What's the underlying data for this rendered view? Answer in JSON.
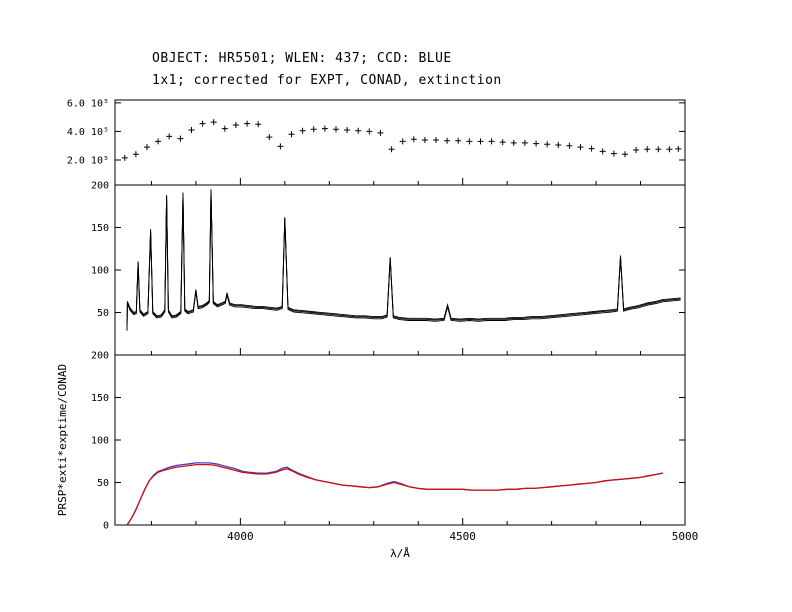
{
  "title": {
    "line1": "OBJECT: HR5501; WLEN: 437; CCD: BLUE",
    "line2": "1x1; corrected for EXPT, CONAD, extinction"
  },
  "axes": {
    "xlabel": "λ/Å",
    "ylabel": "PRSP*exti*exptime/CONAD",
    "xlim": [
      3718,
      5000
    ],
    "xticks": [
      {
        "value": 4000,
        "label": "4000"
      },
      {
        "value": 4500,
        "label": "4500"
      },
      {
        "value": 5000,
        "label": "5000"
      }
    ],
    "xtick_minor_step": 100
  },
  "chart_data": [
    {
      "type": "scatter",
      "name": "flux-calibration-points",
      "marker": "+",
      "color": "#000000",
      "ylim": [
        25000,
        620000
      ],
      "yticks": [
        {
          "value": 200000,
          "label": "2.0 10⁵"
        },
        {
          "value": 400000,
          "label": "4.0 10⁵"
        },
        {
          "value": 600000,
          "label": "6.0 10⁵"
        }
      ],
      "x": [
        3740,
        3765,
        3790,
        3815,
        3840,
        3865,
        3890,
        3915,
        3940,
        3965,
        3990,
        4015,
        4040,
        4065,
        4090,
        4115,
        4140,
        4165,
        4190,
        4215,
        4240,
        4265,
        4290,
        4315,
        4340,
        4365,
        4390,
        4415,
        4440,
        4465,
        4490,
        4515,
        4540,
        4565,
        4590,
        4615,
        4640,
        4665,
        4690,
        4715,
        4740,
        4765,
        4790,
        4815,
        4840,
        4865,
        4890,
        4915,
        4940,
        4965,
        4985
      ],
      "y": [
        215000,
        240000,
        290000,
        330000,
        365000,
        350000,
        410000,
        455000,
        465000,
        420000,
        445000,
        455000,
        450000,
        360000,
        295000,
        380000,
        405000,
        415000,
        420000,
        415000,
        410000,
        405000,
        400000,
        390000,
        275000,
        330000,
        345000,
        340000,
        340000,
        335000,
        335000,
        330000,
        330000,
        330000,
        325000,
        320000,
        320000,
        315000,
        310000,
        305000,
        300000,
        290000,
        280000,
        260000,
        245000,
        240000,
        270000,
        275000,
        275000,
        275000,
        278000
      ]
    },
    {
      "type": "line",
      "name": "raw-spectra-overlay",
      "color": "#000000",
      "overlay_traces": 3,
      "ylim": [
        0,
        200
      ],
      "yticks": [
        {
          "value": 50,
          "label": "50"
        },
        {
          "value": 100,
          "label": "100"
        },
        {
          "value": 150,
          "label": "150"
        },
        {
          "value": 200,
          "label": "200"
        }
      ],
      "x": [
        3745,
        3746,
        3752,
        3760,
        3766,
        3770,
        3774,
        3782,
        3792,
        3798,
        3803,
        3812,
        3822,
        3830,
        3834,
        3838,
        3846,
        3856,
        3866,
        3871,
        3875,
        3882,
        3894,
        3900,
        3905,
        3914,
        3924,
        3930,
        3934,
        3939,
        3948,
        3958,
        3966,
        3970,
        3976,
        3988,
        4002,
        4018,
        4034,
        4050,
        4066,
        4082,
        4094,
        4100,
        4107,
        4120,
        4140,
        4160,
        4180,
        4200,
        4220,
        4240,
        4260,
        4280,
        4300,
        4318,
        4330,
        4337,
        4344,
        4358,
        4378,
        4398,
        4418,
        4438,
        4458,
        4466,
        4474,
        4495,
        4515,
        4535,
        4555,
        4575,
        4595,
        4615,
        4635,
        4655,
        4675,
        4695,
        4715,
        4735,
        4755,
        4775,
        4795,
        4815,
        4835,
        4848,
        4855,
        4862,
        4875,
        4895,
        4915,
        4935,
        4950,
        4970,
        4990
      ],
      "y": [
        30,
        62,
        54,
        49,
        50,
        109,
        52,
        47,
        50,
        147,
        50,
        45,
        46,
        52,
        187,
        52,
        45,
        46,
        50,
        190,
        53,
        50,
        52,
        76,
        56,
        57,
        60,
        63,
        194,
        62,
        58,
        60,
        62,
        72,
        60,
        58,
        58,
        57,
        56,
        56,
        55,
        54,
        56,
        161,
        55,
        52,
        51,
        50,
        49,
        48,
        47,
        46,
        45,
        45,
        44,
        44,
        46,
        114,
        45,
        43,
        42,
        42,
        42,
        41,
        42,
        58,
        42,
        41,
        42,
        41,
        42,
        42,
        42,
        43,
        43,
        44,
        44,
        45,
        46,
        47,
        48,
        49,
        50,
        51,
        52,
        53,
        116,
        53,
        55,
        57,
        60,
        62,
        64,
        65,
        66
      ]
    },
    {
      "type": "line",
      "name": "calibrated-response-curves",
      "ylim": [
        0,
        200
      ],
      "yticks": [
        {
          "value": 0,
          "label": "0"
        },
        {
          "value": 50,
          "label": "50"
        },
        {
          "value": 100,
          "label": "100"
        },
        {
          "value": 150,
          "label": "150"
        },
        {
          "value": 200,
          "label": "200"
        }
      ],
      "x": [
        3745,
        3755,
        3765,
        3775,
        3785,
        3795,
        3805,
        3815,
        3825,
        3840,
        3855,
        3870,
        3885,
        3900,
        3915,
        3930,
        3945,
        3960,
        3975,
        3990,
        4005,
        4020,
        4040,
        4060,
        4080,
        4095,
        4105,
        4115,
        4130,
        4150,
        4170,
        4190,
        4210,
        4230,
        4250,
        4270,
        4290,
        4310,
        4330,
        4345,
        4360,
        4380,
        4400,
        4420,
        4440,
        4460,
        4480,
        4500,
        4520,
        4540,
        4560,
        4580,
        4600,
        4620,
        4640,
        4660,
        4680,
        4700,
        4720,
        4740,
        4760,
        4780,
        4800,
        4820,
        4840,
        4860,
        4880,
        4900,
        4920,
        4940,
        4950
      ],
      "series": [
        {
          "name": "blue",
          "color": "#4040c0",
          "y": [
            0,
            8,
            18,
            30,
            42,
            52,
            59,
            63,
            65,
            68,
            70,
            71,
            72,
            73,
            73,
            73,
            72,
            70,
            68,
            66,
            63,
            62,
            61,
            61,
            63,
            67,
            68,
            65,
            61,
            57,
            53,
            51,
            49,
            47,
            46,
            45,
            44,
            45,
            49,
            51,
            49,
            45,
            43,
            42,
            42,
            42,
            42,
            42,
            41,
            41,
            41,
            41,
            42,
            42,
            43,
            43,
            44,
            45,
            46,
            47,
            48,
            49,
            50,
            52,
            53,
            54,
            55,
            56,
            58,
            60,
            61
          ]
        },
        {
          "name": "red",
          "color": "#cc1111",
          "y": [
            0,
            8,
            18,
            30,
            42,
            52,
            58,
            62,
            64,
            66,
            68,
            69,
            70,
            71,
            71,
            71,
            70,
            68,
            66,
            64,
            62,
            61,
            60,
            60,
            62,
            65,
            66,
            64,
            60,
            56,
            53,
            51,
            49,
            47,
            46,
            45,
            44,
            45,
            48,
            50,
            48,
            45,
            43,
            42,
            42,
            42,
            42,
            42,
            41,
            41,
            41,
            41,
            42,
            42,
            43,
            43,
            44,
            45,
            46,
            47,
            48,
            49,
            50,
            52,
            53,
            54,
            55,
            56,
            58,
            60,
            61
          ]
        }
      ]
    }
  ]
}
